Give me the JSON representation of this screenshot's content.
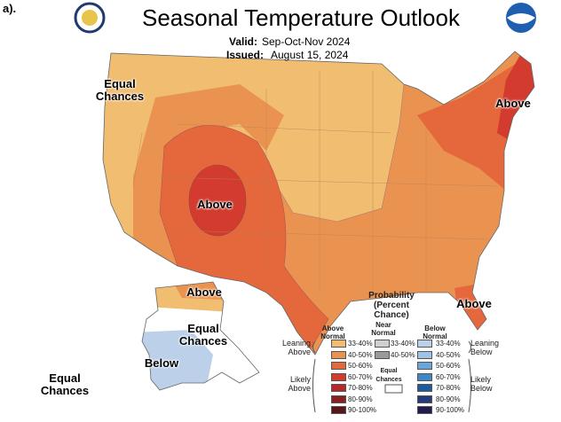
{
  "panel_label": "a).",
  "header": {
    "title": "Seasonal Temperature Outlook",
    "valid_label": "Valid:",
    "valid": "Sep-Oct-Nov 2024",
    "issued_label": "Issued:",
    "issued": "August 15, 2024"
  },
  "map_labels": [
    {
      "text": "Equal Chances"
    },
    {
      "text": "Above"
    },
    {
      "text": "Above"
    },
    {
      "text": "Above"
    },
    {
      "text": "Above"
    },
    {
      "text": "Equal Chances"
    },
    {
      "text": "Below"
    },
    {
      "text": "Equal Chances"
    }
  ],
  "legend": {
    "title": "Probability (Percent Chance)",
    "columns": [
      {
        "name": "Above Normal",
        "items": [
          {
            "label": "33-40%",
            "color": "#f1bd70"
          },
          {
            "label": "40-50%",
            "color": "#ea9350"
          },
          {
            "label": "50-60%",
            "color": "#e4683c"
          },
          {
            "label": "60-70%",
            "color": "#d23b2d"
          },
          {
            "label": "70-80%",
            "color": "#b52a2a"
          },
          {
            "label": "80-90%",
            "color": "#8a1f22"
          },
          {
            "label": "90-100%",
            "color": "#5a1518"
          }
        ]
      },
      {
        "name": "Near Normal",
        "items": [
          {
            "label": "33-40%",
            "color": "#cfcfcf"
          },
          {
            "label": "40-50%",
            "color": "#9a9a9a"
          }
        ]
      },
      {
        "name": "Below Normal",
        "items": [
          {
            "label": "33-40%",
            "color": "#bcd0ea"
          },
          {
            "label": "40-50%",
            "color": "#9ec3e6"
          },
          {
            "label": "50-60%",
            "color": "#6aa5da"
          },
          {
            "label": "60-70%",
            "color": "#3f86c6"
          },
          {
            "label": "70-80%",
            "color": "#1d5aa0"
          },
          {
            "label": "80-90%",
            "color": "#223a78"
          },
          {
            "label": "90-100%",
            "color": "#221a4e"
          }
        ]
      }
    ],
    "groups": [
      "Leaning Above",
      "Likely Above",
      "Equal Chances",
      "Leaning Below",
      "Likely Below"
    ]
  }
}
